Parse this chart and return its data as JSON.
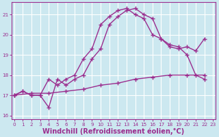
{
  "bg_color": "#cce8f0",
  "grid_color": "#ffffff",
  "line_color": "#9b2d8e",
  "line_width": 1.0,
  "marker": "+",
  "marker_size": 5,
  "marker_ew": 1.0,
  "curve1_x": [
    0,
    1,
    2,
    3,
    4,
    5,
    6,
    7,
    8,
    9,
    10,
    11,
    12,
    13,
    14,
    15,
    16,
    17,
    18,
    19,
    20,
    21,
    22
  ],
  "curve1_y": [
    17.0,
    17.2,
    17.0,
    17.0,
    17.8,
    17.5,
    17.8,
    18.0,
    18.8,
    19.3,
    20.5,
    20.9,
    21.2,
    21.3,
    21.0,
    20.8,
    20.0,
    19.8,
    19.5,
    19.4,
    19.0,
    18.0,
    17.8
  ],
  "curve2_x": [
    0,
    1,
    2,
    3,
    4,
    5,
    6,
    7,
    8,
    9,
    10,
    11,
    12,
    13,
    14,
    15,
    16,
    17,
    18,
    19,
    20,
    21,
    22
  ],
  "curve2_y": [
    17.0,
    17.2,
    17.0,
    17.0,
    16.4,
    17.8,
    17.5,
    17.8,
    18.0,
    18.8,
    19.3,
    20.5,
    20.9,
    21.2,
    21.3,
    21.0,
    20.8,
    19.8,
    19.4,
    19.3,
    19.4,
    19.2,
    19.8
  ],
  "curve3_x": [
    0,
    2,
    4,
    6,
    8,
    10,
    12,
    14,
    16,
    18,
    20,
    22
  ],
  "curve3_y": [
    17.0,
    17.1,
    17.1,
    17.2,
    17.3,
    17.5,
    17.6,
    17.8,
    17.9,
    18.0,
    18.0,
    18.0
  ],
  "xlim": [
    -0.3,
    23.3
  ],
  "ylim": [
    15.8,
    21.6
  ],
  "yticks": [
    16,
    17,
    18,
    19,
    20,
    21
  ],
  "xticks": [
    0,
    1,
    2,
    3,
    4,
    5,
    6,
    7,
    8,
    9,
    10,
    11,
    12,
    13,
    14,
    15,
    16,
    17,
    18,
    19,
    20,
    21,
    22,
    23
  ],
  "xlabel": "Windchill (Refroidissement éolien,°C)",
  "xlabel_color": "#9b2d8e",
  "tick_color": "#9b2d8e",
  "axis_color": "#9b2d8e",
  "tick_fontsize": 5.2,
  "xlabel_fontsize": 7.0
}
